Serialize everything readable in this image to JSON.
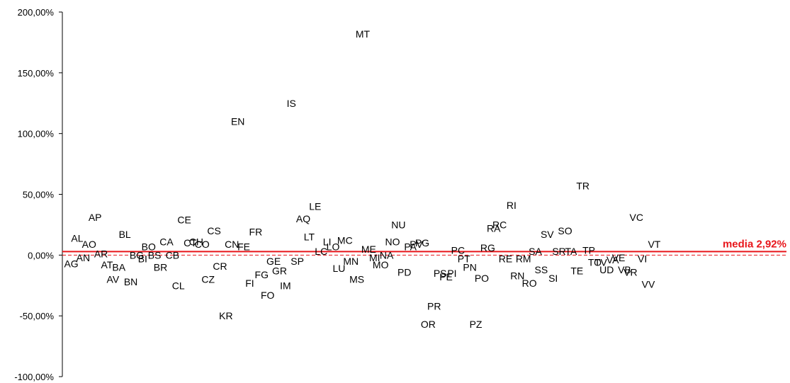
{
  "chart_data": {
    "type": "scatter",
    "title": "",
    "xlabel": "",
    "ylabel": "",
    "ylim": [
      -100,
      200
    ],
    "yticks": [
      {
        "value": 200,
        "label": "200,00%"
      },
      {
        "value": 150,
        "label": "150,00%"
      },
      {
        "value": 100,
        "label": "100,00%"
      },
      {
        "value": 50,
        "label": "50,00%"
      },
      {
        "value": 0,
        "label": "0,00%"
      },
      {
        "value": -50,
        "label": "-50,00%"
      },
      {
        "value": -100,
        "label": "-100,00%"
      }
    ],
    "grid": false,
    "legend": "none",
    "xaxis_categories": 106,
    "mean": {
      "value": 2.92,
      "label": "media 2,92%",
      "color": "#e8161b"
    },
    "zero_line_color": "#e8161b",
    "points": [
      {
        "label": "AG",
        "x": 1,
        "y": -7
      },
      {
        "label": "AL",
        "x": 2,
        "y": 14
      },
      {
        "label": "AN",
        "x": 3,
        "y": -2
      },
      {
        "label": "AO",
        "x": 4,
        "y": 9
      },
      {
        "label": "AP",
        "x": 5,
        "y": 31
      },
      {
        "label": "AR",
        "x": 6,
        "y": 1
      },
      {
        "label": "AT",
        "x": 7,
        "y": -8
      },
      {
        "label": "AV",
        "x": 8,
        "y": -20
      },
      {
        "label": "BA",
        "x": 9,
        "y": -10
      },
      {
        "label": "BL",
        "x": 10,
        "y": 17
      },
      {
        "label": "BN",
        "x": 11,
        "y": -22
      },
      {
        "label": "BG",
        "x": 12,
        "y": 0
      },
      {
        "label": "BI",
        "x": 13,
        "y": -3
      },
      {
        "label": "BO",
        "x": 14,
        "y": 7
      },
      {
        "label": "BS",
        "x": 15,
        "y": 0
      },
      {
        "label": "BR",
        "x": 16,
        "y": -10
      },
      {
        "label": "CA",
        "x": 17,
        "y": 11
      },
      {
        "label": "CB",
        "x": 18,
        "y": 0
      },
      {
        "label": "CL",
        "x": 19,
        "y": -25
      },
      {
        "label": "CE",
        "x": 20,
        "y": 29
      },
      {
        "label": "CT",
        "x": 21,
        "y": 10
      },
      {
        "label": "CH",
        "x": 22,
        "y": 11
      },
      {
        "label": "CO",
        "x": 23,
        "y": 9
      },
      {
        "label": "CZ",
        "x": 24,
        "y": -20
      },
      {
        "label": "CS",
        "x": 25,
        "y": 20
      },
      {
        "label": "CR",
        "x": 26,
        "y": -9
      },
      {
        "label": "KR",
        "x": 27,
        "y": -50
      },
      {
        "label": "CN",
        "x": 28,
        "y": 9
      },
      {
        "label": "EN",
        "x": 29,
        "y": 110
      },
      {
        "label": "FE",
        "x": 30,
        "y": 7
      },
      {
        "label": "FI",
        "x": 31,
        "y": -23
      },
      {
        "label": "FR",
        "x": 32,
        "y": 19
      },
      {
        "label": "FG",
        "x": 33,
        "y": -16
      },
      {
        "label": "FO",
        "x": 34,
        "y": -33
      },
      {
        "label": "GE",
        "x": 35,
        "y": -5
      },
      {
        "label": "GR",
        "x": 36,
        "y": -13
      },
      {
        "label": "IM",
        "x": 37,
        "y": -25
      },
      {
        "label": "IS",
        "x": 38,
        "y": 125
      },
      {
        "label": "SP",
        "x": 39,
        "y": -5
      },
      {
        "label": "AQ",
        "x": 40,
        "y": 30
      },
      {
        "label": "LT",
        "x": 41,
        "y": 15
      },
      {
        "label": "LE",
        "x": 42,
        "y": 40
      },
      {
        "label": "LC",
        "x": 43,
        "y": 3
      },
      {
        "label": "LI",
        "x": 44,
        "y": 11
      },
      {
        "label": "LO",
        "x": 45,
        "y": 7
      },
      {
        "label": "LU",
        "x": 46,
        "y": -11
      },
      {
        "label": "MC",
        "x": 47,
        "y": 12
      },
      {
        "label": "MN",
        "x": 48,
        "y": -5
      },
      {
        "label": "MS",
        "x": 49,
        "y": -20
      },
      {
        "label": "MT",
        "x": 50,
        "y": 182
      },
      {
        "label": "ME",
        "x": 51,
        "y": 5
      },
      {
        "label": "MI",
        "x": 52,
        "y": -2
      },
      {
        "label": "MO",
        "x": 53,
        "y": -8
      },
      {
        "label": "NA",
        "x": 54,
        "y": 0
      },
      {
        "label": "NO",
        "x": 55,
        "y": 11
      },
      {
        "label": "NU",
        "x": 56,
        "y": 25
      },
      {
        "label": "PD",
        "x": 57,
        "y": -14
      },
      {
        "label": "PA",
        "x": 58,
        "y": 7
      },
      {
        "label": "PV",
        "x": 59,
        "y": 9
      },
      {
        "label": "PG",
        "x": 60,
        "y": 10
      },
      {
        "label": "OR",
        "x": 61,
        "y": -57
      },
      {
        "label": "PR",
        "x": 62,
        "y": -42
      },
      {
        "label": "PS",
        "x": 63,
        "y": -15
      },
      {
        "label": "PE",
        "x": 64,
        "y": -18
      },
      {
        "label": "PI",
        "x": 65,
        "y": -15
      },
      {
        "label": "PC",
        "x": 66,
        "y": 4
      },
      {
        "label": "PT",
        "x": 67,
        "y": -3
      },
      {
        "label": "PN",
        "x": 68,
        "y": -10
      },
      {
        "label": "PZ",
        "x": 69,
        "y": -57
      },
      {
        "label": "PO",
        "x": 70,
        "y": -19
      },
      {
        "label": "RG",
        "x": 71,
        "y": 6
      },
      {
        "label": "RA",
        "x": 72,
        "y": 22
      },
      {
        "label": "RC",
        "x": 73,
        "y": 25
      },
      {
        "label": "RE",
        "x": 74,
        "y": -3
      },
      {
        "label": "RI",
        "x": 75,
        "y": 41
      },
      {
        "label": "RN",
        "x": 76,
        "y": -17
      },
      {
        "label": "RM",
        "x": 77,
        "y": -3
      },
      {
        "label": "RO",
        "x": 78,
        "y": -23
      },
      {
        "label": "SA",
        "x": 79,
        "y": 3
      },
      {
        "label": "SS",
        "x": 80,
        "y": -12
      },
      {
        "label": "SV",
        "x": 81,
        "y": 17
      },
      {
        "label": "SI",
        "x": 82,
        "y": -19
      },
      {
        "label": "SR",
        "x": 83,
        "y": 3
      },
      {
        "label": "SO",
        "x": 84,
        "y": 20
      },
      {
        "label": "TA",
        "x": 85,
        "y": 3
      },
      {
        "label": "TE",
        "x": 86,
        "y": -13
      },
      {
        "label": "TR",
        "x": 87,
        "y": 57
      },
      {
        "label": "TP",
        "x": 88,
        "y": 4
      },
      {
        "label": "TO",
        "x": 89,
        "y": -6
      },
      {
        "label": "TV",
        "x": 90,
        "y": -6
      },
      {
        "label": "UD",
        "x": 91,
        "y": -12
      },
      {
        "label": "VA",
        "x": 92,
        "y": -4
      },
      {
        "label": "VE",
        "x": 93,
        "y": -2
      },
      {
        "label": "VB",
        "x": 94,
        "y": -12
      },
      {
        "label": "VR",
        "x": 95,
        "y": -14
      },
      {
        "label": "VC",
        "x": 96,
        "y": 31
      },
      {
        "label": "VI",
        "x": 97,
        "y": -3
      },
      {
        "label": "VV",
        "x": 98,
        "y": -24
      },
      {
        "label": "VT",
        "x": 99,
        "y": 9
      }
    ]
  }
}
